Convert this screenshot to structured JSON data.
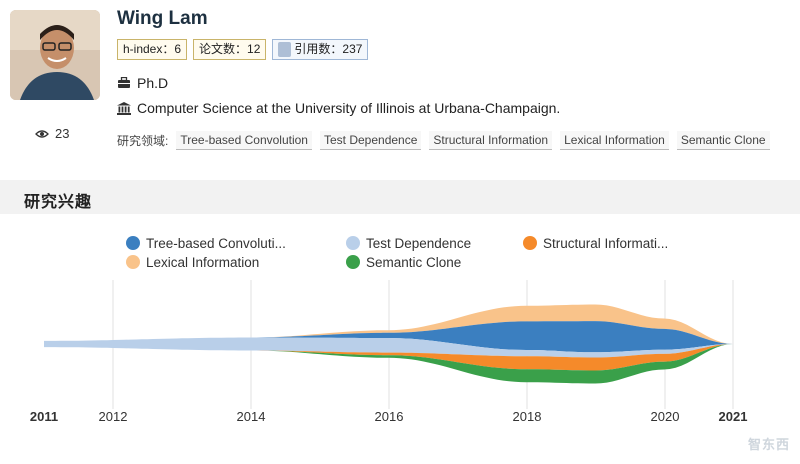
{
  "profile": {
    "name": "Wing Lam",
    "h_index_label": "h-index：6",
    "papers_label": "论文数：12",
    "citations_label": "引用数：237",
    "degree": "Ph.D",
    "affiliation": "Computer Science at the University of Illinois at Urbana-Champaign.",
    "views": "23",
    "fields_label": "研究领域:",
    "fields": [
      "Tree-based Convolution",
      "Test Dependence",
      "Structural Information",
      "Lexical Information",
      "Semantic Clone"
    ]
  },
  "section": {
    "title": "研究兴趣"
  },
  "chart_data": {
    "type": "area",
    "subtype": "streamgraph",
    "x_ticks": [
      "2011",
      "2012",
      "2014",
      "2016",
      "2018",
      "2020",
      "2021"
    ],
    "bold_ticks": [
      "2011",
      "2021"
    ],
    "x_range": [
      2011,
      2021
    ],
    "grid": "vertical lines at ticks",
    "legend_position": "top",
    "series": [
      {
        "name": "Tree-based Convoluti...",
        "color": "#3b7fc0",
        "x": [
          2011,
          2014,
          2016,
          2018,
          2019,
          2020,
          2021
        ],
        "values": [
          0,
          0,
          0.1,
          0.55,
          0.6,
          0.4,
          0
        ]
      },
      {
        "name": "Test Dependence",
        "color": "#b9cfe9",
        "x": [
          2011,
          2014,
          2016,
          2018,
          2019,
          2020,
          2021
        ],
        "values": [
          0.12,
          0.25,
          0.28,
          0.12,
          0.1,
          0.08,
          0
        ]
      },
      {
        "name": "Structural Informati...",
        "color": "#f58a2a",
        "x": [
          2011,
          2014,
          2016,
          2018,
          2019,
          2020,
          2021
        ],
        "values": [
          0,
          0,
          0.05,
          0.25,
          0.25,
          0.15,
          0
        ]
      },
      {
        "name": "Lexical Information",
        "color": "#f9c38a",
        "x": [
          2011,
          2014,
          2016,
          2018,
          2019,
          2020,
          2021
        ],
        "values": [
          0,
          0,
          0.05,
          0.3,
          0.32,
          0.2,
          0
        ]
      },
      {
        "name": "Semantic Clone",
        "color": "#3aa04a",
        "x": [
          2011,
          2014,
          2016,
          2018,
          2019,
          2020,
          2021
        ],
        "values": [
          0,
          0,
          0.05,
          0.25,
          0.25,
          0.15,
          0
        ]
      }
    ]
  },
  "watermark": "智东西"
}
